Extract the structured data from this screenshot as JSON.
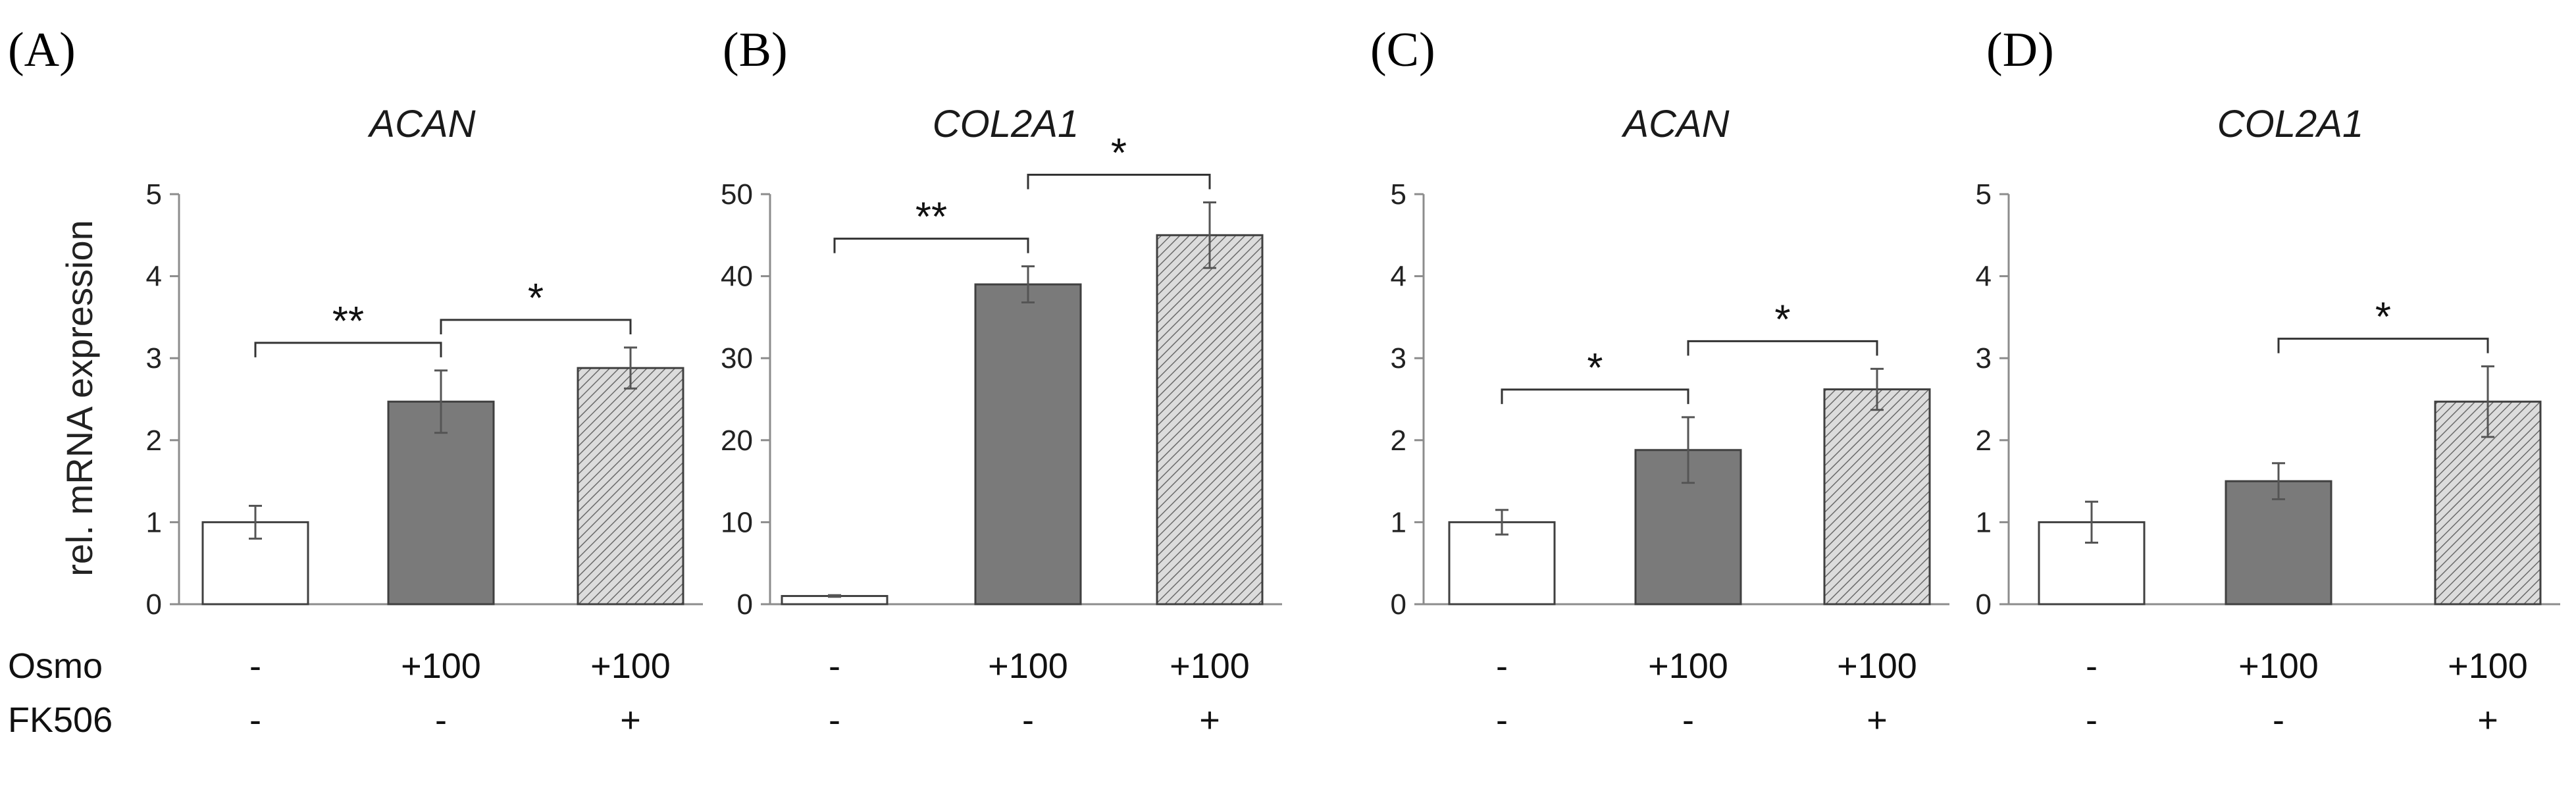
{
  "figure": {
    "row_labels": [
      "Osmo",
      "FK506"
    ],
    "y_axis_label": "rel. mRNA expression"
  },
  "colors": {
    "control_fill": "#ffffff",
    "osmo_fill": "#7a7a7a",
    "hatch_fill": "#d9d9d9",
    "bar_stroke": "#404040"
  },
  "chart_data": [
    {
      "type": "bar",
      "panel_label": "(A)",
      "title": "ACAN",
      "ylabel": "rel. mRNA expression",
      "ylim": [
        0,
        5
      ],
      "yticks": [
        "0",
        "1",
        "2",
        "3",
        "4",
        "5"
      ],
      "categories": [
        "-/-",
        "+100/-",
        "+100/+"
      ],
      "osmo": [
        "-",
        "+100",
        "+100"
      ],
      "fk506": [
        "-",
        "-",
        "+"
      ],
      "values": [
        1.0,
        2.47,
        2.88
      ],
      "errors": [
        0.2,
        0.38,
        0.25
      ],
      "significance": [
        {
          "from": 0,
          "to": 1,
          "label": "**"
        },
        {
          "from": 1,
          "to": 2,
          "label": "*"
        }
      ]
    },
    {
      "type": "bar",
      "panel_label": "(B)",
      "title": "COL2A1",
      "ylabel": "",
      "ylim": [
        0,
        50
      ],
      "yticks": [
        "0",
        "10",
        "20",
        "30",
        "40",
        "50"
      ],
      "categories": [
        "-/-",
        "+100/-",
        "+100/+"
      ],
      "osmo": [
        "-",
        "+100",
        "+100"
      ],
      "fk506": [
        "-",
        "-",
        "+"
      ],
      "values": [
        1.0,
        39.0,
        45.0
      ],
      "errors": [
        0.1,
        2.2,
        4.0
      ],
      "significance": [
        {
          "from": 0,
          "to": 1,
          "label": "**"
        },
        {
          "from": 1,
          "to": 2,
          "label": "*"
        }
      ]
    },
    {
      "type": "bar",
      "panel_label": "(C)",
      "title": "ACAN",
      "ylabel": "",
      "ylim": [
        0,
        5
      ],
      "yticks": [
        "0",
        "1",
        "2",
        "3",
        "4",
        "5"
      ],
      "categories": [
        "-/-",
        "+100/-",
        "+100/+"
      ],
      "osmo": [
        "-",
        "+100",
        "+100"
      ],
      "fk506": [
        "-",
        "-",
        "+"
      ],
      "values": [
        1.0,
        1.88,
        2.62
      ],
      "errors": [
        0.15,
        0.4,
        0.25
      ],
      "significance": [
        {
          "from": 0,
          "to": 1,
          "label": "*"
        },
        {
          "from": 1,
          "to": 2,
          "label": "*"
        }
      ]
    },
    {
      "type": "bar",
      "panel_label": "(D)",
      "title": "COL2A1",
      "ylabel": "",
      "ylim": [
        0,
        5
      ],
      "yticks": [
        "0",
        "1",
        "2",
        "3",
        "4",
        "5"
      ],
      "categories": [
        "-/-",
        "+100/-",
        "+100/+"
      ],
      "osmo": [
        "-",
        "+100",
        "+100"
      ],
      "fk506": [
        "-",
        "-",
        "+"
      ],
      "values": [
        1.0,
        1.5,
        2.47
      ],
      "errors": [
        0.25,
        0.22,
        0.43
      ],
      "significance": [
        {
          "from": 1,
          "to": 2,
          "label": "*"
        }
      ]
    }
  ]
}
